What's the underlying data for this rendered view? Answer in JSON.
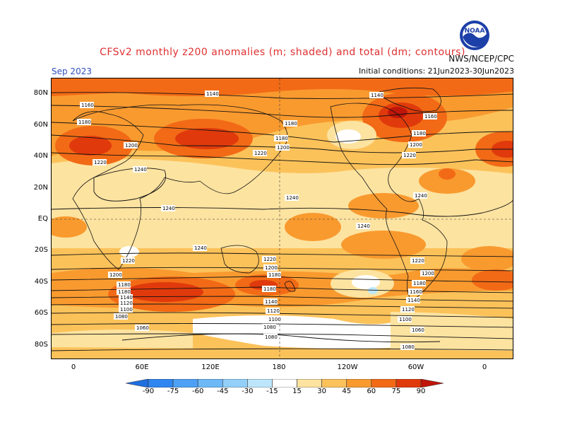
{
  "title": "CFSv2 monthly z200 anomalies (m; shaded) and total (dm; contours)",
  "month_label": "Sep 2023",
  "initial_conditions": "Initial conditions: 21Jun2023-30Jun2023",
  "agency": "NWS/NCEP/CPC",
  "logo_text": "NOAA",
  "lat_labels": [
    "80N",
    "60N",
    "40N",
    "20N",
    "EQ",
    "20S",
    "40S",
    "60S",
    "80S"
  ],
  "lon_labels": [
    "0",
    "60E",
    "120E",
    "180",
    "120W",
    "60W",
    "0"
  ],
  "colorbar": {
    "labels": [
      "-90",
      "-75",
      "-60",
      "-45",
      "-30",
      "-15",
      "15",
      "30",
      "45",
      "60",
      "75",
      "90"
    ],
    "colors": [
      "#1e6fe0",
      "#2f86f0",
      "#4da0f5",
      "#6db9f8",
      "#92d0fa",
      "#bde6fc",
      "#ffffff",
      "#fde3a0",
      "#fcc25a",
      "#f99a2f",
      "#f26a16",
      "#e03a0c",
      "#c0160a"
    ]
  },
  "contour_labels": [
    "1140",
    "1160",
    "1180",
    "1200",
    "1220",
    "1240",
    "1120",
    "1100",
    "1080",
    "1060"
  ],
  "colors": {
    "title": "#e03030",
    "month": "#3050c0"
  }
}
